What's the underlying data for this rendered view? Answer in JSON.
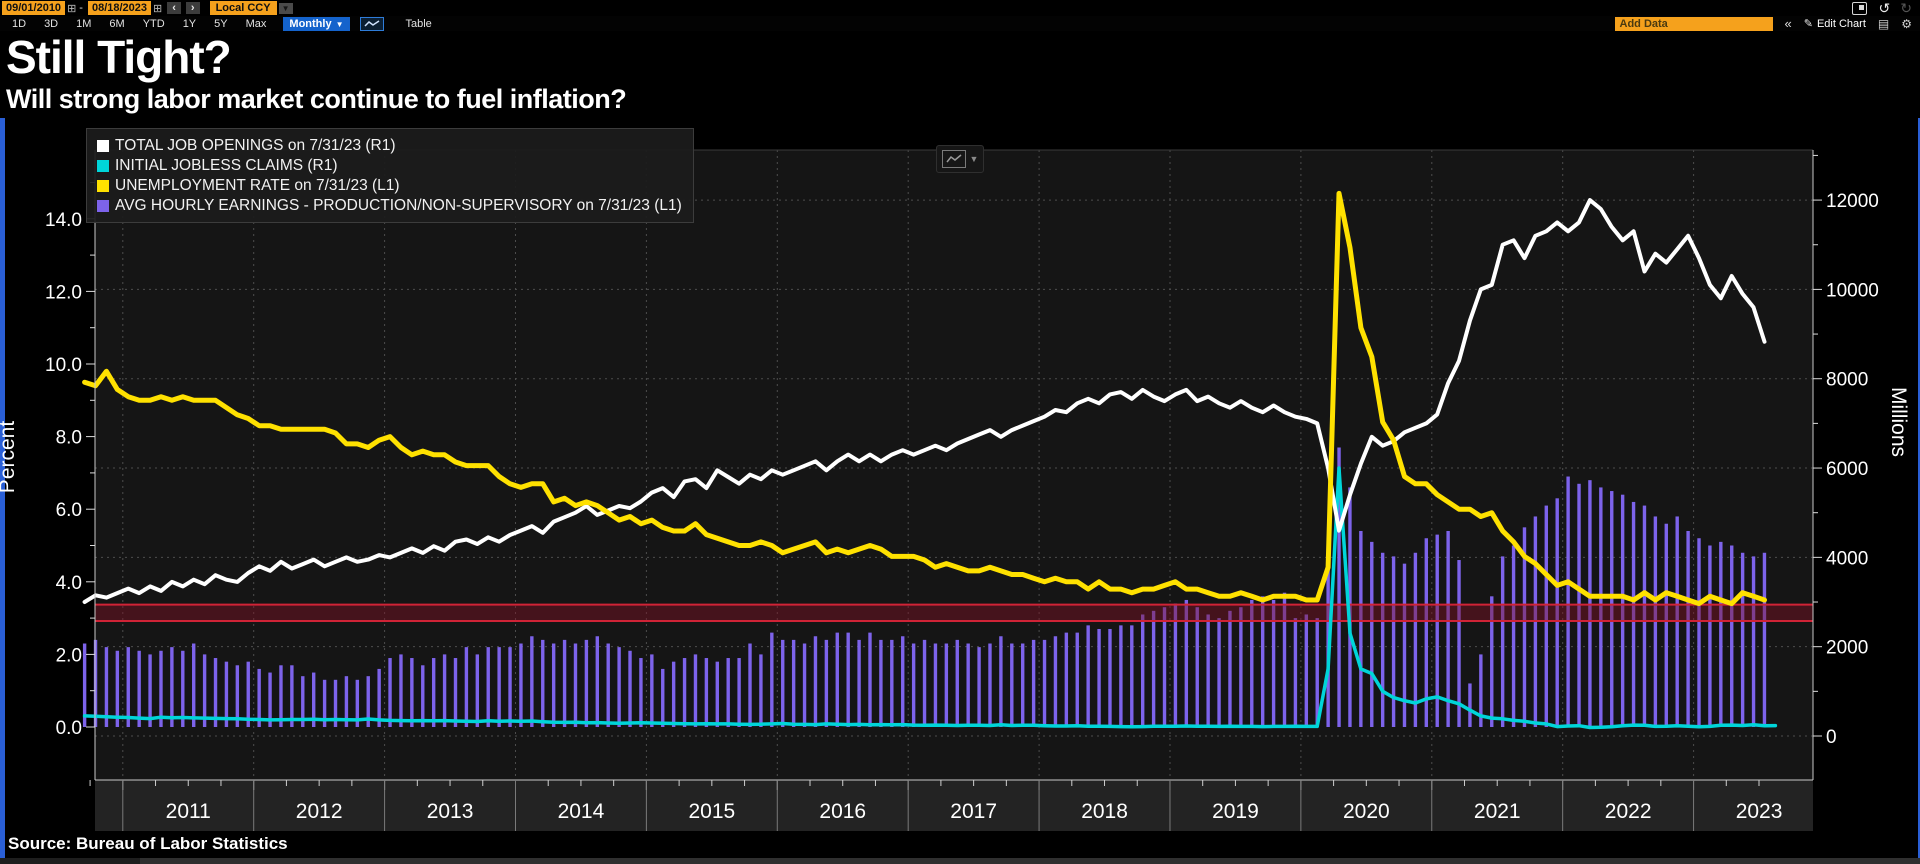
{
  "toolbar": {
    "date_start": "09/01/2010",
    "date_end": "08/18/2023",
    "dash": "-",
    "prev": "‹",
    "next": "›",
    "currency": "Local CCY",
    "range_buttons": [
      "1D",
      "3D",
      "1M",
      "6M",
      "YTD",
      "1Y",
      "5Y",
      "Max"
    ],
    "period_selected": "Monthly",
    "table_label": "Table",
    "add_data_placeholder": "Add Data",
    "edit_chart_label": "Edit Chart"
  },
  "icons": {
    "calendar": "⊞",
    "caret_down": "▼",
    "undo": "↺",
    "redo": "↻",
    "collapse": "«",
    "pencil": "✎",
    "notebook": "▤",
    "gear": "⚙"
  },
  "header": {
    "title": "Still Tight?",
    "subtitle": "Will strong labor market continue to fuel inflation?"
  },
  "legend": [
    {
      "label": "TOTAL JOB OPENINGS on 7/31/23 (R1)",
      "color": "#ffffff"
    },
    {
      "label": "INITIAL JOBLESS CLAIMS (R1)",
      "color": "#00d5d9"
    },
    {
      "label": "UNEMPLOYMENT RATE on 7/31/23 (L1)",
      "color": "#ffe100"
    },
    {
      "label": "AVG HOURLY EARNINGS - PRODUCTION/NON-SUPERVISORY on 7/31/23 (L1)",
      "color": "#7d63ea"
    }
  ],
  "source": "Source: Bureau of Labor Statistics",
  "chart_data": {
    "type": "mixed",
    "title": "Still Tight?",
    "subtitle": "Will strong labor market continue to fuel inflation?",
    "frequency": "monthly",
    "start_month": "2010-09",
    "end_month": "2023-07",
    "x_years": [
      "2011",
      "2012",
      "2013",
      "2014",
      "2015",
      "2016",
      "2017",
      "2018",
      "2019",
      "2020",
      "2021",
      "2022",
      "2023"
    ],
    "left_axis": {
      "title": "Percent",
      "ticks": [
        0,
        2,
        4,
        6,
        8,
        10,
        12,
        14
      ],
      "range": [
        0,
        15.9
      ]
    },
    "right_axis": {
      "title": "Millions",
      "ticks": [
        0,
        2000,
        4000,
        6000,
        8000,
        10000,
        12000
      ],
      "range": [
        0,
        13100
      ]
    },
    "highlight_band": {
      "axis": "L1",
      "from": 2.92,
      "to": 3.37,
      "fill": "#801125",
      "line_color": "#d02336"
    },
    "series": [
      {
        "name": "TOTAL JOB OPENINGS on 7/31/23 (R1)",
        "axis": "R1",
        "type": "line",
        "color": "#ffffff",
        "unit": "thousands",
        "values": [
          3000,
          3150,
          3100,
          3200,
          3300,
          3200,
          3350,
          3250,
          3450,
          3350,
          3500,
          3400,
          3600,
          3500,
          3450,
          3650,
          3800,
          3700,
          3900,
          3750,
          3850,
          3950,
          3800,
          3900,
          4000,
          3900,
          3950,
          4050,
          4000,
          4100,
          4200,
          4100,
          4250,
          4150,
          4350,
          4400,
          4300,
          4450,
          4350,
          4500,
          4600,
          4700,
          4550,
          4800,
          4900,
          5000,
          5150,
          4950,
          5050,
          5150,
          5100,
          5250,
          5450,
          5550,
          5350,
          5700,
          5750,
          5550,
          5950,
          5800,
          5650,
          5850,
          5750,
          5950,
          5850,
          5950,
          6050,
          6150,
          5950,
          6150,
          6300,
          6150,
          6300,
          6150,
          6300,
          6400,
          6300,
          6400,
          6500,
          6400,
          6550,
          6650,
          6750,
          6850,
          6700,
          6850,
          6950,
          7050,
          7150,
          7300,
          7250,
          7450,
          7550,
          7450,
          7650,
          7700,
          7550,
          7750,
          7600,
          7500,
          7650,
          7750,
          7500,
          7600,
          7450,
          7350,
          7500,
          7350,
          7250,
          7400,
          7250,
          7150,
          7100,
          7000,
          6000,
          4600,
          5400,
          6100,
          6700,
          6500,
          6600,
          6800,
          6900,
          7000,
          7200,
          7900,
          8400,
          9300,
          10000,
          10100,
          11000,
          11100,
          10700,
          11200,
          11300,
          11500,
          11300,
          11500,
          12000,
          11800,
          11400,
          11100,
          11300,
          10400,
          10800,
          10600,
          10900,
          11200,
          10700,
          10100,
          9800,
          10300,
          9900,
          9600,
          8830
        ]
      },
      {
        "name": "INITIAL JOBLESS CLAIMS (R1)",
        "axis": "R1",
        "type": "line",
        "color": "#00d5d9",
        "unit": "thousands",
        "values": [
          450,
          440,
          430,
          420,
          415,
          400,
          390,
          420,
          410,
          415,
          405,
          400,
          395,
          390,
          385,
          375,
          370,
          360,
          365,
          370,
          370,
          375,
          365,
          370,
          365,
          360,
          380,
          360,
          350,
          345,
          340,
          345,
          340,
          345,
          335,
          330,
          325,
          340,
          330,
          335,
          330,
          335,
          320,
          310,
          305,
          310,
          295,
          300,
          290,
          285,
          290,
          295,
          290,
          285,
          280,
          275,
          270,
          275,
          270,
          270,
          265,
          260,
          265,
          270,
          280,
          265,
          260,
          255,
          270,
          265,
          255,
          260,
          250,
          255,
          250,
          255,
          245,
          240,
          245,
          240,
          235,
          240,
          240,
          235,
          250,
          235,
          240,
          240,
          230,
          225,
          225,
          230,
          220,
          220,
          215,
          210,
          205,
          210,
          220,
          220,
          220,
          225,
          220,
          220,
          215,
          220,
          215,
          215,
          210,
          215,
          215,
          220,
          215,
          215,
          1500,
          6000,
          2300,
          1500,
          1400,
          1000,
          860,
          790,
          740,
          830,
          875,
          790,
          720,
          580,
          450,
          400,
          385,
          350,
          330,
          290,
          270,
          210,
          225,
          230,
          190,
          195,
          205,
          230,
          245,
          240,
          215,
          220,
          230,
          220,
          205,
          215,
          240,
          245,
          235,
          250,
          230,
          232
        ]
      },
      {
        "name": "UNEMPLOYMENT RATE on 7/31/23 (L1)",
        "axis": "L1",
        "type": "line",
        "color": "#ffe100",
        "unit": "percent",
        "values": [
          9.5,
          9.4,
          9.8,
          9.3,
          9.1,
          9.0,
          9.0,
          9.1,
          9.0,
          9.1,
          9.0,
          9.0,
          9.0,
          8.8,
          8.6,
          8.5,
          8.3,
          8.3,
          8.2,
          8.2,
          8.2,
          8.2,
          8.2,
          8.1,
          7.8,
          7.8,
          7.7,
          7.9,
          8.0,
          7.7,
          7.5,
          7.6,
          7.5,
          7.5,
          7.3,
          7.2,
          7.2,
          7.2,
          6.9,
          6.7,
          6.6,
          6.7,
          6.7,
          6.2,
          6.3,
          6.1,
          6.2,
          6.1,
          5.9,
          5.7,
          5.8,
          5.6,
          5.7,
          5.5,
          5.4,
          5.4,
          5.6,
          5.3,
          5.2,
          5.1,
          5.0,
          5.0,
          5.1,
          5.0,
          4.8,
          4.9,
          5.0,
          5.1,
          4.8,
          4.9,
          4.8,
          4.9,
          5.0,
          4.9,
          4.7,
          4.7,
          4.7,
          4.6,
          4.4,
          4.5,
          4.4,
          4.3,
          4.3,
          4.4,
          4.3,
          4.2,
          4.2,
          4.1,
          4.0,
          4.1,
          4.0,
          4.0,
          3.8,
          4.0,
          3.8,
          3.8,
          3.7,
          3.8,
          3.8,
          3.9,
          4.0,
          3.8,
          3.8,
          3.7,
          3.6,
          3.6,
          3.7,
          3.6,
          3.5,
          3.6,
          3.6,
          3.6,
          3.5,
          3.5,
          4.4,
          14.7,
          13.2,
          11.0,
          10.2,
          8.4,
          7.9,
          6.9,
          6.7,
          6.7,
          6.4,
          6.2,
          6.0,
          6.0,
          5.8,
          5.9,
          5.4,
          5.1,
          4.7,
          4.5,
          4.2,
          3.9,
          4.0,
          3.8,
          3.6,
          3.6,
          3.6,
          3.6,
          3.5,
          3.7,
          3.5,
          3.7,
          3.6,
          3.5,
          3.4,
          3.6,
          3.5,
          3.4,
          3.7,
          3.6,
          3.5
        ]
      },
      {
        "name": "AVG HOURLY EARNINGS - PRODUCTION/NON-SUPERVISORY on 7/31/23 (L1)",
        "axis": "L1",
        "type": "bar",
        "color": "#7d63ea",
        "unit": "percent",
        "values": [
          2.3,
          2.4,
          2.2,
          2.1,
          2.2,
          2.1,
          2.0,
          2.1,
          2.2,
          2.1,
          2.3,
          2.0,
          1.9,
          1.8,
          1.7,
          1.8,
          1.6,
          1.5,
          1.7,
          1.7,
          1.4,
          1.5,
          1.3,
          1.3,
          1.4,
          1.3,
          1.4,
          1.6,
          1.9,
          2.0,
          1.9,
          1.7,
          1.9,
          2.0,
          1.9,
          2.2,
          2.0,
          2.2,
          2.2,
          2.2,
          2.3,
          2.5,
          2.4,
          2.3,
          2.4,
          2.3,
          2.4,
          2.5,
          2.3,
          2.2,
          2.1,
          1.9,
          2.0,
          1.6,
          1.8,
          1.9,
          2.0,
          1.9,
          1.8,
          1.9,
          1.9,
          2.3,
          2.0,
          2.6,
          2.4,
          2.4,
          2.3,
          2.5,
          2.4,
          2.6,
          2.6,
          2.4,
          2.6,
          2.4,
          2.4,
          2.5,
          2.3,
          2.4,
          2.3,
          2.3,
          2.4,
          2.3,
          2.2,
          2.3,
          2.5,
          2.3,
          2.3,
          2.4,
          2.4,
          2.5,
          2.6,
          2.6,
          2.8,
          2.7,
          2.7,
          2.8,
          2.8,
          3.1,
          3.2,
          3.3,
          3.4,
          3.5,
          3.3,
          3.1,
          3.0,
          3.2,
          3.3,
          3.5,
          3.6,
          3.5,
          3.7,
          3.0,
          3.1,
          3.0,
          4.7,
          7.7,
          6.6,
          5.4,
          5.1,
          4.8,
          4.7,
          4.5,
          4.8,
          5.2,
          5.3,
          5.4,
          4.6,
          1.2,
          2.0,
          3.6,
          4.7,
          5.0,
          5.5,
          5.8,
          6.1,
          6.3,
          6.9,
          6.7,
          6.8,
          6.6,
          6.5,
          6.4,
          6.2,
          6.1,
          5.8,
          5.6,
          5.8,
          5.4,
          5.2,
          5.0,
          5.1,
          5.0,
          4.8,
          4.7,
          4.8
        ]
      }
    ]
  }
}
